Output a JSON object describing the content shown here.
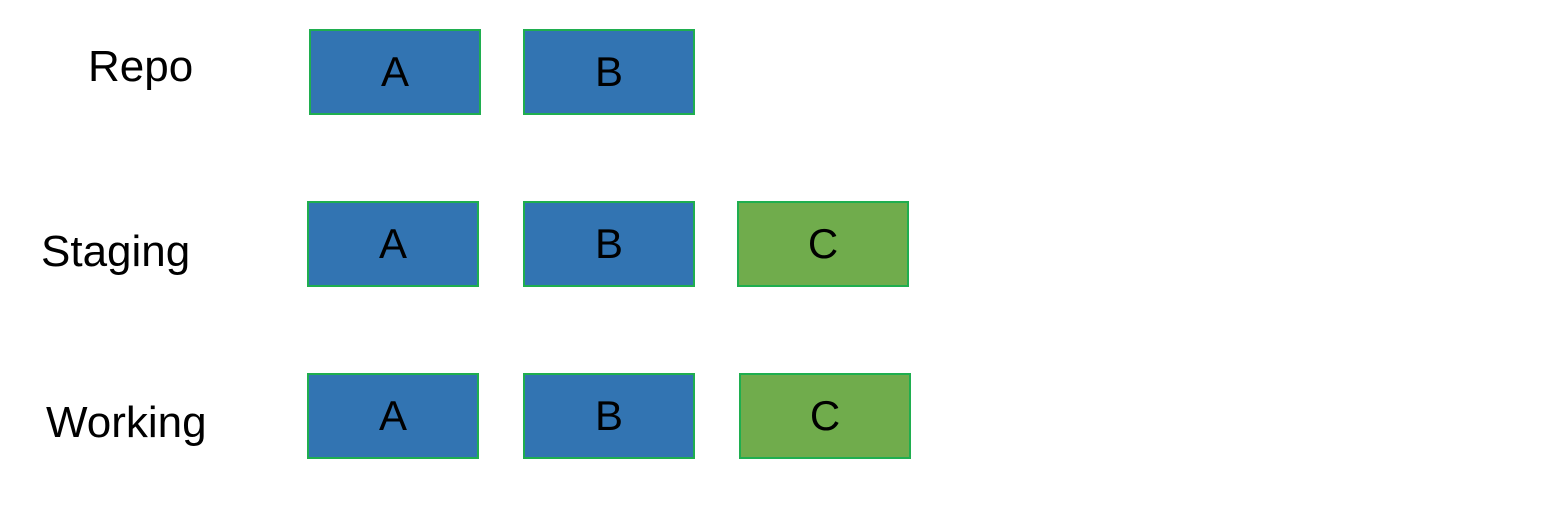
{
  "colors": {
    "committed_fill": "#3274b2",
    "new_fill": "#70ac4c",
    "box_border": "#1fae4f"
  },
  "rows": [
    {
      "label": "Repo",
      "boxes": [
        "A",
        "B"
      ]
    },
    {
      "label": "Staging",
      "boxes": [
        "A",
        "B",
        "C"
      ]
    },
    {
      "label": "Working",
      "boxes": [
        "A",
        "B",
        "C"
      ]
    }
  ]
}
